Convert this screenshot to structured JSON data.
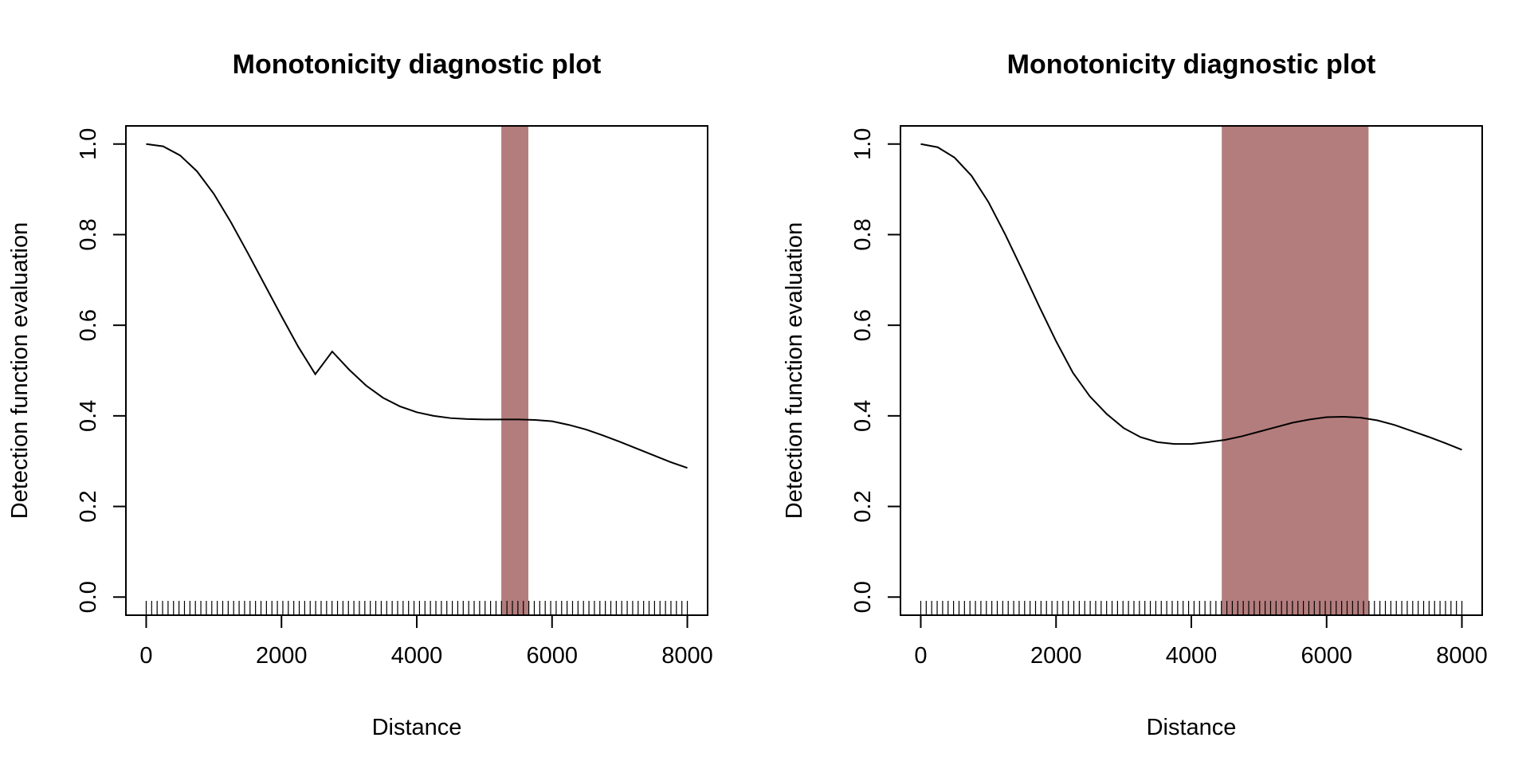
{
  "colors": {
    "region": "#b47d7d",
    "line": "#000000",
    "background": "#ffffff"
  },
  "chart_data": [
    {
      "type": "line",
      "title": "Monotonicity diagnostic plot",
      "xlabel": "Distance",
      "ylabel": "Detection function evaluation",
      "xlim": [
        -300,
        8300
      ],
      "ylim": [
        -0.04,
        1.04
      ],
      "xticks": [
        0,
        2000,
        4000,
        6000,
        8000
      ],
      "yticks": [
        0.0,
        0.2,
        0.4,
        0.6,
        0.8,
        1.0
      ],
      "xtick_labels": [
        "0",
        "2000",
        "4000",
        "6000",
        "8000"
      ],
      "ytick_labels": [
        "0.0",
        "0.2",
        "0.4",
        "0.6",
        "0.8",
        "1.0"
      ],
      "grid": false,
      "highlight_region": {
        "x_start": 5250,
        "x_end": 5650
      },
      "rug": {
        "start": 0,
        "end": 8000,
        "count": 100
      },
      "series": [
        {
          "x": [
            0,
            250,
            500,
            750,
            1000,
            1250,
            1500,
            1750,
            2000,
            2250,
            2500,
            2750,
            3000,
            3250,
            3500,
            3750,
            4000,
            4250,
            4500,
            4750,
            5000,
            5250,
            5500,
            5750,
            6000,
            6250,
            6500,
            6750,
            7000,
            7250,
            7500,
            7750,
            8000
          ],
          "y": [
            1.0,
            0.995,
            0.975,
            0.94,
            0.89,
            0.828,
            0.76,
            0.69,
            0.62,
            0.552,
            0.492,
            0.542,
            0.502,
            0.467,
            0.44,
            0.421,
            0.408,
            0.4,
            0.395,
            0.393,
            0.392,
            0.392,
            0.392,
            0.391,
            0.388,
            0.38,
            0.37,
            0.357,
            0.343,
            0.328,
            0.313,
            0.298,
            0.285
          ]
        }
      ]
    },
    {
      "type": "line",
      "title": "Monotonicity diagnostic plot",
      "xlabel": "Distance",
      "ylabel": "Detection function evaluation",
      "xlim": [
        -300,
        8300
      ],
      "ylim": [
        -0.04,
        1.04
      ],
      "xticks": [
        0,
        2000,
        4000,
        6000,
        8000
      ],
      "yticks": [
        0.0,
        0.2,
        0.4,
        0.6,
        0.8,
        1.0
      ],
      "xtick_labels": [
        "0",
        "2000",
        "4000",
        "6000",
        "8000"
      ],
      "ytick_labels": [
        "0.0",
        "0.2",
        "0.4",
        "0.6",
        "0.8",
        "1.0"
      ],
      "grid": false,
      "highlight_region": {
        "x_start": 4450,
        "x_end": 6620
      },
      "rug": {
        "start": 0,
        "end": 8000,
        "count": 100
      },
      "series": [
        {
          "x": [
            0,
            250,
            500,
            750,
            1000,
            1250,
            1500,
            1750,
            2000,
            2250,
            2500,
            2750,
            3000,
            3250,
            3500,
            3750,
            4000,
            4250,
            4500,
            4750,
            5000,
            5250,
            5500,
            5750,
            6000,
            6250,
            6500,
            6750,
            7000,
            7250,
            7500,
            7750,
            8000
          ],
          "y": [
            1.0,
            0.993,
            0.97,
            0.93,
            0.872,
            0.8,
            0.722,
            0.642,
            0.565,
            0.495,
            0.443,
            0.404,
            0.373,
            0.353,
            0.342,
            0.338,
            0.338,
            0.342,
            0.347,
            0.355,
            0.365,
            0.375,
            0.385,
            0.392,
            0.397,
            0.398,
            0.396,
            0.39,
            0.38,
            0.367,
            0.354,
            0.34,
            0.325
          ]
        }
      ]
    }
  ]
}
